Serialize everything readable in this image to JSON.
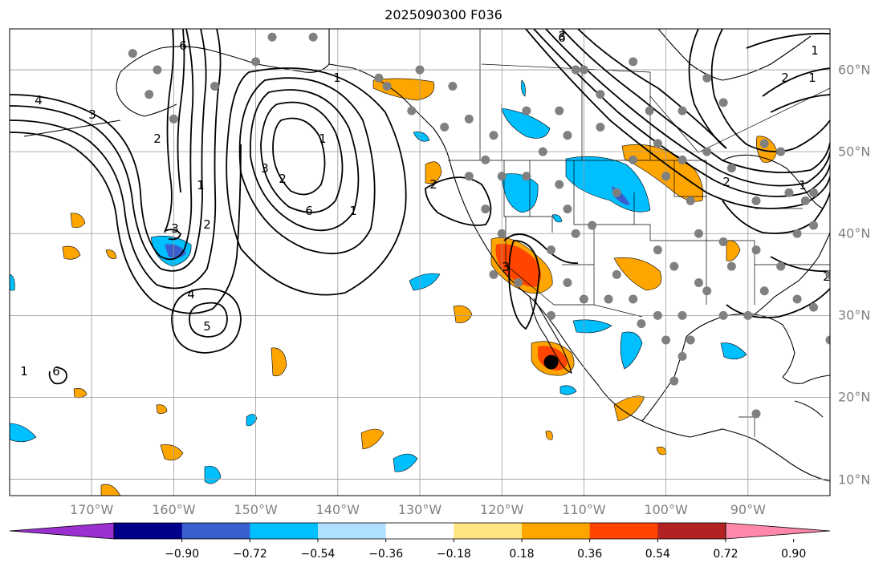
{
  "map": {
    "title": "2025090300 F036",
    "lon_labels": [
      "170°W",
      "160°W",
      "150°W",
      "140°W",
      "130°W",
      "120°W",
      "110°W",
      "100°W",
      "90°W"
    ],
    "lon_values": [
      -170,
      -160,
      -150,
      -140,
      -130,
      -120,
      -110,
      -100,
      -90
    ],
    "lat_labels": [
      "60°N",
      "50°N",
      "40°N",
      "30°N",
      "20°N",
      "10°N"
    ],
    "lat_values": [
      60,
      50,
      40,
      30,
      20,
      10
    ],
    "extent": {
      "lon_min": -180,
      "lon_max": -80,
      "lat_min": 8,
      "lat_max": 65
    },
    "storm_marker": {
      "lon": -114,
      "lat": 24.3
    },
    "contour_labels": [
      "6",
      "1",
      "4",
      "3",
      "2",
      "1",
      "2",
      "3",
      "4",
      "5",
      "6",
      "1",
      "3",
      "2",
      "1",
      "2",
      "3",
      "6",
      "1",
      "2",
      "1",
      "2",
      "3",
      "6",
      "1",
      "2",
      "1"
    ]
  },
  "colorbar": {
    "ticks": [
      "−0.90",
      "−0.72",
      "−0.54",
      "−0.36",
      "−0.18",
      "0.18",
      "0.36",
      "0.54",
      "0.72",
      "0.90"
    ],
    "colors": [
      "#9b30d0",
      "#00008b",
      "#3a5fcd",
      "#00bfff",
      "#b0e0ff",
      "#ffffff",
      "#ffe680",
      "#ffa500",
      "#ff4500",
      "#b22222",
      "#ff88aa"
    ]
  },
  "stations": [
    [
      -165,
      62
    ],
    [
      -162,
      60
    ],
    [
      -163,
      57
    ],
    [
      -160,
      54
    ],
    [
      -155,
      58
    ],
    [
      -150,
      61
    ],
    [
      -148,
      64
    ],
    [
      -143,
      64
    ],
    [
      -135,
      59
    ],
    [
      -130,
      60
    ],
    [
      -126,
      58
    ],
    [
      -124,
      54
    ],
    [
      -122,
      49
    ],
    [
      -124,
      47
    ],
    [
      -120,
      47
    ],
    [
      -122,
      43
    ],
    [
      -117,
      47
    ],
    [
      -120,
      40
    ],
    [
      -121,
      35
    ],
    [
      -118,
      34
    ],
    [
      -115,
      50
    ],
    [
      -112,
      52
    ],
    [
      -113,
      46
    ],
    [
      -112,
      43
    ],
    [
      -111,
      40
    ],
    [
      -114,
      38
    ],
    [
      -112,
      34
    ],
    [
      -110,
      32
    ],
    [
      -107,
      32
    ],
    [
      -104,
      32
    ],
    [
      -106,
      35
    ],
    [
      -109,
      41
    ],
    [
      -106,
      45
    ],
    [
      -100,
      47
    ],
    [
      -97,
      44
    ],
    [
      -96,
      40
    ],
    [
      -93,
      39
    ],
    [
      -101,
      38
    ],
    [
      -99,
      36
    ],
    [
      -96,
      34
    ],
    [
      -98,
      30
    ],
    [
      -101,
      30
    ],
    [
      -95,
      33
    ],
    [
      -93,
      30
    ],
    [
      -90,
      30
    ],
    [
      -88,
      33
    ],
    [
      -86,
      36
    ],
    [
      -84,
      40
    ],
    [
      -85,
      45
    ],
    [
      -89,
      44
    ],
    [
      -83,
      44
    ],
    [
      -82,
      41
    ],
    [
      -80,
      35
    ],
    [
      -82,
      31
    ],
    [
      -80,
      27
    ],
    [
      -84,
      32
    ],
    [
      -92,
      36
    ],
    [
      -89,
      38
    ],
    [
      -97,
      27
    ],
    [
      -98,
      25
    ],
    [
      -99,
      22
    ],
    [
      -89,
      18
    ],
    [
      -95,
      59
    ],
    [
      -93,
      56
    ],
    [
      -98,
      55
    ],
    [
      -102,
      55
    ],
    [
      -108,
      57
    ],
    [
      -110,
      60
    ],
    [
      -104,
      61
    ],
    [
      -82,
      45
    ],
    [
      -86,
      50
    ],
    [
      -88,
      51
    ],
    [
      -108,
      53
    ],
    [
      -117,
      55
    ],
    [
      -121,
      52
    ],
    [
      -127,
      53
    ],
    [
      -131,
      55
    ],
    [
      -134,
      58
    ],
    [
      -113,
      55
    ],
    [
      -111,
      60
    ],
    [
      -95,
      50
    ],
    [
      -92,
      48
    ],
    [
      -101,
      51
    ],
    [
      -98,
      49
    ],
    [
      -104,
      49
    ],
    [
      -114,
      30
    ],
    [
      -103,
      29
    ],
    [
      -100,
      27
    ]
  ]
}
